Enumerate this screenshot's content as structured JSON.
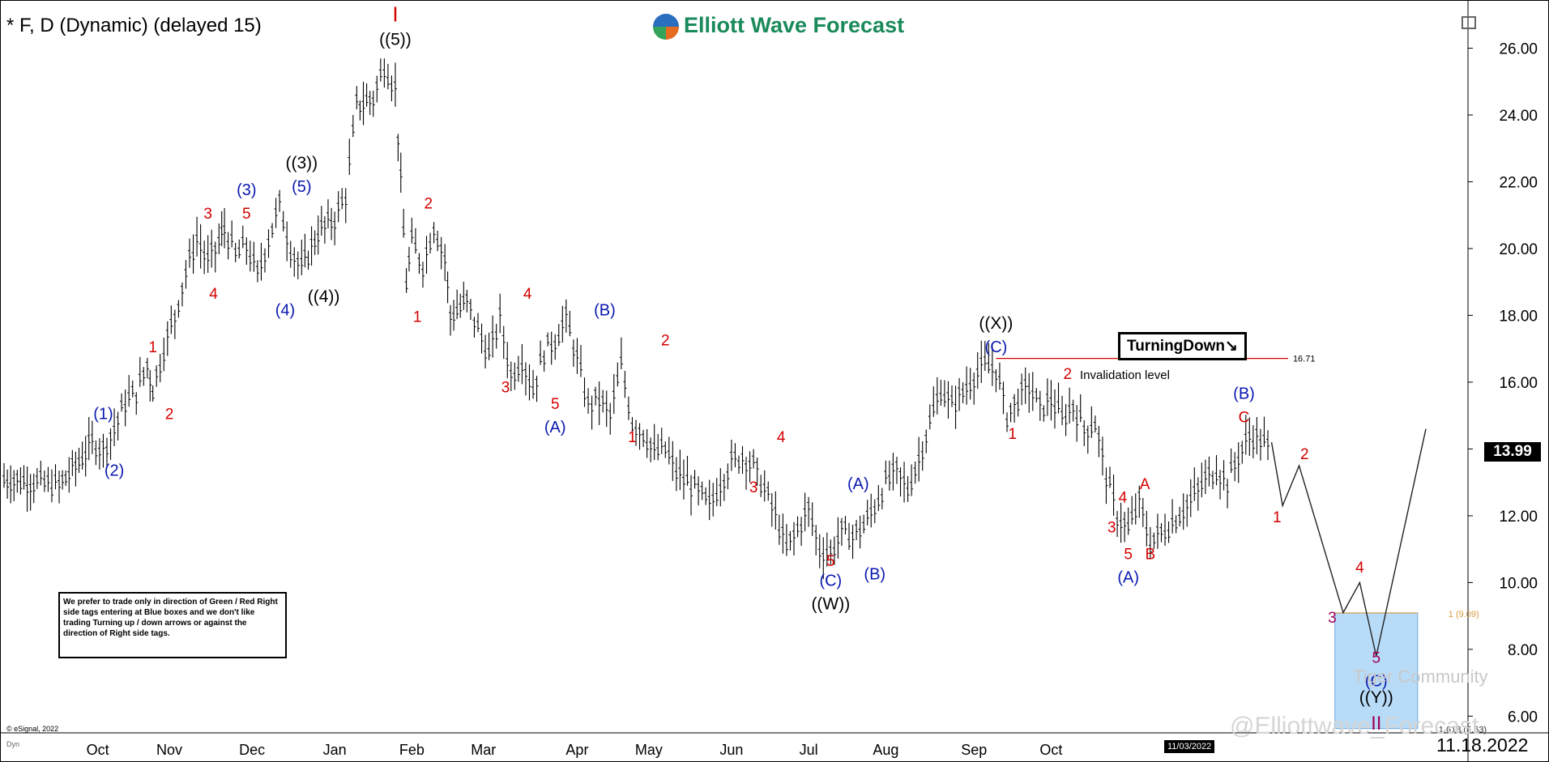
{
  "header": {
    "symbol_label": "* F, D (Dynamic) (delayed 15)"
  },
  "brand": {
    "name": "Elliott Wave Forecast"
  },
  "note": {
    "text": "We prefer to trade only in direction of Green / Red Right side tags entering at Blue boxes and we don't like trading Turning up / down arrows or against the direction of Right side tags."
  },
  "turning_tag": {
    "label": "TurningDown↘",
    "level": "16.71"
  },
  "invalidation": {
    "label": "Invalidation level"
  },
  "price_box": {
    "value": "13.99"
  },
  "footer": {
    "date": "11.18.2022",
    "cursor_date": "11/03/2022",
    "copyright": "© eSignal, 2022",
    "dyn": "Dyn"
  },
  "watermark": {
    "tiger": "Tiger Community",
    "handle": "@Elliottwave_Forecast"
  },
  "colors": {
    "red": "#d40000",
    "blue": "#0a18b0",
    "black": "#000000",
    "purple": "#a0005a",
    "box": "#b8dcf8",
    "fib": "#d89a40",
    "brand": "#1a8a5a"
  },
  "chart_data": {
    "type": "bar",
    "ylim": [
      5.5,
      27.2
    ],
    "yticks": [
      "26.00",
      "24.00",
      "22.00",
      "20.00",
      "18.00",
      "16.00",
      "14.00",
      "12.00",
      "10.00",
      "8.00",
      "6.00"
    ],
    "xticks": [
      "Oct",
      "Nov",
      "Dec",
      "Jan",
      "Feb",
      "Mar",
      "Apr",
      "May",
      "Jun",
      "Jul",
      "Aug",
      "Sep",
      "Oct"
    ],
    "price_path": [
      [
        0,
        13.1
      ],
      [
        6,
        13.0
      ],
      [
        10,
        12.9
      ],
      [
        13,
        13.5
      ],
      [
        16,
        14.2
      ],
      [
        18,
        14.0
      ],
      [
        20,
        14.6
      ],
      [
        22,
        15.4
      ],
      [
        24,
        15.7
      ],
      [
        26,
        16.5
      ],
      [
        27,
        15.8
      ],
      [
        29,
        17.0
      ],
      [
        31,
        18.0
      ],
      [
        33,
        19.3
      ],
      [
        35,
        20.3
      ],
      [
        37,
        19.6
      ],
      [
        39,
        20.2
      ],
      [
        40,
        20.6
      ],
      [
        42,
        19.8
      ],
      [
        44,
        20.1
      ],
      [
        46,
        19.2
      ],
      [
        48,
        20.3
      ],
      [
        50,
        21.3
      ],
      [
        52,
        20.0
      ],
      [
        54,
        19.4
      ],
      [
        57,
        20.5
      ],
      [
        60,
        20.9
      ],
      [
        62,
        21.6
      ],
      [
        64,
        24.3
      ],
      [
        67,
        24.5
      ],
      [
        69,
        25.5
      ],
      [
        71,
        24.8
      ],
      [
        72,
        22.0
      ],
      [
        73,
        19.0
      ],
      [
        74,
        20.2
      ],
      [
        76,
        19.5
      ],
      [
        78,
        20.7
      ],
      [
        80,
        19.7
      ],
      [
        81,
        18.0
      ],
      [
        84,
        18.4
      ],
      [
        86,
        17.6
      ],
      [
        88,
        16.8
      ],
      [
        90,
        17.9
      ],
      [
        92,
        16.2
      ],
      [
        94,
        16.7
      ],
      [
        96,
        15.8
      ],
      [
        98,
        16.9
      ],
      [
        100,
        17.3
      ],
      [
        102,
        17.9
      ],
      [
        104,
        16.7
      ],
      [
        106,
        15.3
      ],
      [
        108,
        15.5
      ],
      [
        110,
        15.0
      ],
      [
        112,
        16.5
      ],
      [
        114,
        14.8
      ],
      [
        116,
        14.5
      ],
      [
        118,
        13.9
      ],
      [
        120,
        14.0
      ],
      [
        122,
        13.3
      ],
      [
        124,
        13.0
      ],
      [
        126,
        12.7
      ],
      [
        128,
        12.3
      ],
      [
        130,
        13.0
      ],
      [
        132,
        13.6
      ],
      [
        134,
        13.8
      ],
      [
        136,
        13.5
      ],
      [
        138,
        12.8
      ],
      [
        140,
        12.0
      ],
      [
        142,
        11.0
      ],
      [
        144,
        11.6
      ],
      [
        146,
        12.2
      ],
      [
        148,
        11.0
      ],
      [
        150,
        10.9
      ],
      [
        152,
        11.5
      ],
      [
        154,
        11.4
      ],
      [
        156,
        11.7
      ],
      [
        158,
        12.3
      ],
      [
        160,
        13.0
      ],
      [
        162,
        13.3
      ],
      [
        164,
        12.8
      ],
      [
        166,
        13.7
      ],
      [
        168,
        14.8
      ],
      [
        170,
        15.8
      ],
      [
        172,
        15.3
      ],
      [
        174,
        15.7
      ],
      [
        176,
        16.2
      ],
      [
        178,
        16.5
      ],
      [
        180,
        16.4
      ],
      [
        182,
        15.0
      ],
      [
        184,
        15.5
      ],
      [
        186,
        15.9
      ],
      [
        188,
        15.2
      ],
      [
        190,
        15.5
      ],
      [
        192,
        14.9
      ],
      [
        194,
        15.3
      ],
      [
        196,
        14.6
      ],
      [
        198,
        14.8
      ],
      [
        200,
        13.2
      ],
      [
        202,
        12.0
      ],
      [
        204,
        11.6
      ],
      [
        206,
        12.4
      ],
      [
        208,
        11.2
      ],
      [
        210,
        11.5
      ],
      [
        212,
        11.8
      ],
      [
        214,
        12.2
      ],
      [
        216,
        12.6
      ],
      [
        218,
        13.1
      ],
      [
        220,
        13.4
      ],
      [
        222,
        13.0
      ],
      [
        224,
        13.8
      ],
      [
        226,
        14.4
      ],
      [
        228,
        14.3
      ],
      [
        230,
        13.9
      ]
    ],
    "projection": [
      [
        230,
        14.2
      ],
      [
        232,
        12.3
      ],
      [
        235,
        13.5
      ],
      [
        243,
        9.1
      ],
      [
        246,
        10.0
      ],
      [
        249,
        7.8
      ],
      [
        258,
        14.6
      ]
    ],
    "invalidation_level": 16.71,
    "blue_box": {
      "from": 9.09,
      "to": 5.63,
      "labels": [
        "1 (9.09)",
        "1.618 (5.63)"
      ]
    },
    "annotations": [
      {
        "text": "I",
        "color": "red",
        "x": 71,
        "y": 26.8,
        "size": 26
      },
      {
        "text": "((5))",
        "color": "black",
        "x": 71,
        "y": 26.1,
        "size": 21
      },
      {
        "text": "((3))",
        "color": "black",
        "x": 54,
        "y": 22.4,
        "size": 21
      },
      {
        "text": "(5)",
        "color": "blue",
        "x": 54,
        "y": 21.7,
        "size": 20
      },
      {
        "text": "(3)",
        "color": "blue",
        "x": 44,
        "y": 21.6,
        "size": 20
      },
      {
        "text": "5",
        "color": "red",
        "x": 44,
        "y": 20.9,
        "size": 19
      },
      {
        "text": "3",
        "color": "red",
        "x": 37,
        "y": 20.9,
        "size": 19
      },
      {
        "text": "4",
        "color": "red",
        "x": 38,
        "y": 18.5,
        "size": 19
      },
      {
        "text": "(4)",
        "color": "blue",
        "x": 51,
        "y": 18.0,
        "size": 20
      },
      {
        "text": "((4))",
        "color": "black",
        "x": 58,
        "y": 18.4,
        "size": 21
      },
      {
        "text": "1",
        "color": "red",
        "x": 27,
        "y": 16.9,
        "size": 19
      },
      {
        "text": "2",
        "color": "red",
        "x": 30,
        "y": 14.9,
        "size": 19
      },
      {
        "text": "(1)",
        "color": "blue",
        "x": 18,
        "y": 14.9,
        "size": 20
      },
      {
        "text": "(2)",
        "color": "blue",
        "x": 20,
        "y": 13.2,
        "size": 20
      },
      {
        "text": "2",
        "color": "red",
        "x": 77,
        "y": 21.2,
        "size": 19
      },
      {
        "text": "1",
        "color": "red",
        "x": 75,
        "y": 17.8,
        "size": 19
      },
      {
        "text": "4",
        "color": "red",
        "x": 95,
        "y": 18.5,
        "size": 19
      },
      {
        "text": "3",
        "color": "red",
        "x": 91,
        "y": 15.7,
        "size": 19
      },
      {
        "text": "5",
        "color": "red",
        "x": 100,
        "y": 15.2,
        "size": 19
      },
      {
        "text": "(A)",
        "color": "blue",
        "x": 100,
        "y": 14.5,
        "size": 20
      },
      {
        "text": "(B)",
        "color": "blue",
        "x": 109,
        "y": 18.0,
        "size": 20
      },
      {
        "text": "2",
        "color": "red",
        "x": 120,
        "y": 17.1,
        "size": 19
      },
      {
        "text": "1",
        "color": "red",
        "x": 114,
        "y": 14.2,
        "size": 19
      },
      {
        "text": "4",
        "color": "red",
        "x": 141,
        "y": 14.2,
        "size": 19
      },
      {
        "text": "3",
        "color": "red",
        "x": 136,
        "y": 12.7,
        "size": 19
      },
      {
        "text": "5",
        "color": "red",
        "x": 150,
        "y": 10.5,
        "size": 19
      },
      {
        "text": "(C)",
        "color": "blue",
        "x": 150,
        "y": 9.9,
        "size": 20
      },
      {
        "text": "((W))",
        "color": "black",
        "x": 150,
        "y": 9.2,
        "size": 21
      },
      {
        "text": "(A)",
        "color": "blue",
        "x": 155,
        "y": 12.8,
        "size": 20
      },
      {
        "text": "(B)",
        "color": "blue",
        "x": 158,
        "y": 10.1,
        "size": 20
      },
      {
        "text": "((X))",
        "color": "black",
        "x": 180,
        "y": 17.6,
        "size": 21
      },
      {
        "text": "(C)",
        "color": "blue",
        "x": 180,
        "y": 16.9,
        "size": 20
      },
      {
        "text": "1",
        "color": "red",
        "x": 183,
        "y": 14.3,
        "size": 19
      },
      {
        "text": "2",
        "color": "red",
        "x": 193,
        "y": 16.1,
        "size": 19
      },
      {
        "text": "4",
        "color": "red",
        "x": 203,
        "y": 12.4,
        "size": 19
      },
      {
        "text": "A",
        "color": "red",
        "x": 207,
        "y": 12.8,
        "size": 19
      },
      {
        "text": "3",
        "color": "red",
        "x": 201,
        "y": 11.5,
        "size": 19
      },
      {
        "text": "5",
        "color": "red",
        "x": 204,
        "y": 10.7,
        "size": 19
      },
      {
        "text": "B",
        "color": "red",
        "x": 208,
        "y": 10.7,
        "size": 19
      },
      {
        "text": "(A)",
        "color": "blue",
        "x": 204,
        "y": 10.0,
        "size": 20
      },
      {
        "text": "(B)",
        "color": "blue",
        "x": 225,
        "y": 15.5,
        "size": 20
      },
      {
        "text": "C",
        "color": "red",
        "x": 225,
        "y": 14.8,
        "size": 19
      },
      {
        "text": "2",
        "color": "red",
        "x": 236,
        "y": 13.7,
        "size": 19
      },
      {
        "text": "1",
        "color": "red",
        "x": 231,
        "y": 11.8,
        "size": 19
      },
      {
        "text": "4",
        "color": "red",
        "x": 246,
        "y": 10.3,
        "size": 19
      },
      {
        "text": "3",
        "color": "purple",
        "x": 241,
        "y": 8.8,
        "size": 19
      },
      {
        "text": "5",
        "color": "purple",
        "x": 249,
        "y": 7.6,
        "size": 19
      },
      {
        "text": "(C)",
        "color": "blue",
        "x": 249,
        "y": 6.9,
        "size": 20
      },
      {
        "text": "((Y))",
        "color": "black",
        "x": 249,
        "y": 6.4,
        "size": 21
      },
      {
        "text": "II",
        "color": "purple",
        "x": 249,
        "y": 5.6,
        "size": 24
      }
    ]
  }
}
